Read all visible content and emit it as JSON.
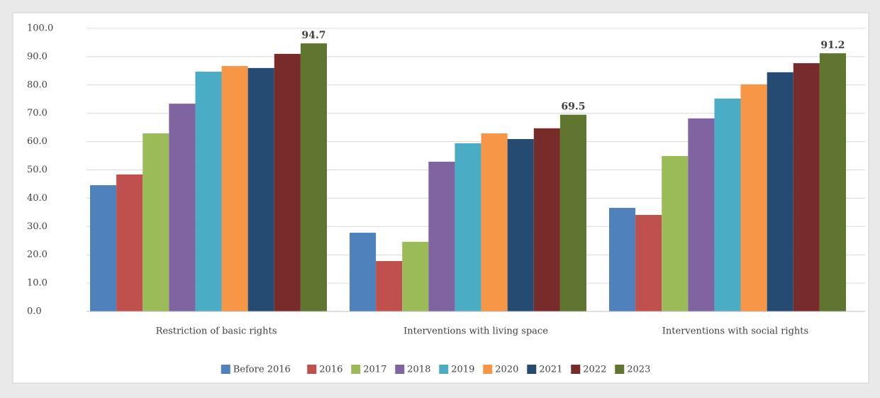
{
  "chart_data": {
    "type": "bar",
    "categories": [
      "Restriction of basic rights",
      "Interventions with living space",
      "Interventions with social rights"
    ],
    "series": [
      {
        "name": "Before 2016",
        "color": "#4f81bd",
        "values": [
          44.6,
          27.8,
          36.6
        ]
      },
      {
        "name": "2016",
        "color": "#c0504d",
        "values": [
          48.4,
          17.8,
          34.1
        ]
      },
      {
        "name": "2017",
        "color": "#9bbb59",
        "values": [
          62.9,
          24.6,
          54.9
        ]
      },
      {
        "name": "2018",
        "color": "#8064a2",
        "values": [
          73.4,
          52.9,
          68.2
        ]
      },
      {
        "name": "2019",
        "color": "#4bacc6",
        "values": [
          84.7,
          59.4,
          75.2
        ]
      },
      {
        "name": "2020",
        "color": "#f79646",
        "values": [
          86.7,
          62.9,
          80.2
        ]
      },
      {
        "name": "2021",
        "color": "#264b72",
        "values": [
          86.0,
          60.9,
          84.5
        ]
      },
      {
        "name": "2022",
        "color": "#772c2a",
        "values": [
          91.0,
          64.7,
          87.7
        ]
      },
      {
        "name": "2023",
        "color": "#5f7530",
        "values": [
          94.7,
          69.5,
          91.2
        ],
        "show_labels": true
      }
    ],
    "ylim": [
      0,
      100
    ],
    "yticks": [
      {
        "value": 0,
        "label": "0.0"
      },
      {
        "value": 10,
        "label": "10.0"
      },
      {
        "value": 20,
        "label": "20.0"
      },
      {
        "value": 30,
        "label": "30.0"
      },
      {
        "value": 40,
        "label": "40.0"
      },
      {
        "value": 50,
        "label": "50.0"
      },
      {
        "value": 60,
        "label": "60.0"
      },
      {
        "value": 70,
        "label": "70.0"
      },
      {
        "value": 80,
        "label": "80.0"
      },
      {
        "value": 90,
        "label": "90.0"
      },
      {
        "value": 100,
        "label": "100.0"
      }
    ],
    "grid": true,
    "legend": "bottom"
  }
}
